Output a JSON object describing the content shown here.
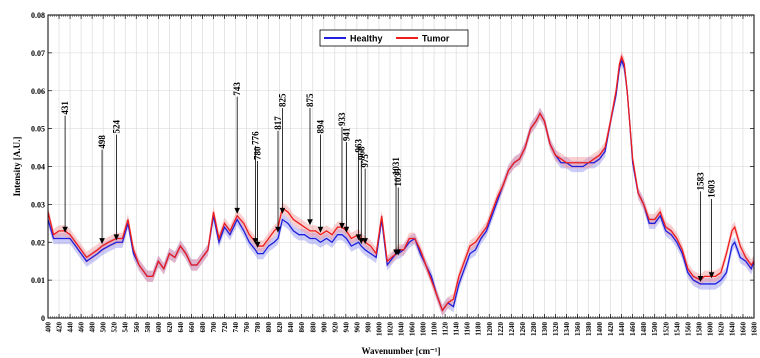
{
  "chart_data": {
    "type": "line",
    "title": "",
    "xlabel": "Wavenumber [cm⁻¹]",
    "ylabel": "Intensity [A.U.]",
    "xlim": [
      400,
      1680
    ],
    "ylim": [
      0,
      0.08
    ],
    "grid": true,
    "legend": "top-center",
    "y_ticks": [
      "0",
      "0.01",
      "0.02",
      "0.03",
      "0.04",
      "0.05",
      "0.06",
      "0.07",
      "0.08"
    ],
    "x_ticks": [
      400,
      420,
      440,
      460,
      480,
      500,
      520,
      540,
      560,
      580,
      600,
      620,
      640,
      660,
      680,
      700,
      720,
      740,
      760,
      780,
      800,
      820,
      840,
      860,
      880,
      900,
      920,
      940,
      960,
      980,
      1000,
      1020,
      1040,
      1060,
      1080,
      1100,
      1120,
      1140,
      1160,
      1180,
      1200,
      1220,
      1240,
      1260,
      1280,
      1300,
      1320,
      1340,
      1360,
      1380,
      1400,
      1420,
      1440,
      1460,
      1480,
      1500,
      1520,
      1540,
      1560,
      1580,
      1600,
      1620,
      1640,
      1660,
      1680
    ],
    "series": [
      {
        "name": "Healthy",
        "color": "#1f1fdd",
        "band_color": "#8f8ff0",
        "x": [
          400,
          410,
          420,
          431,
          440,
          450,
          460,
          470,
          480,
          490,
          498,
          510,
          524,
          535,
          545,
          555,
          565,
          580,
          590,
          600,
          610,
          620,
          630,
          640,
          650,
          660,
          670,
          680,
          690,
          700,
          710,
          720,
          730,
          743,
          755,
          765,
          776,
          780,
          790,
          800,
          810,
          817,
          825,
          835,
          845,
          855,
          865,
          875,
          885,
          894,
          905,
          915,
          925,
          933,
          941,
          950,
          963,
          968,
          975,
          985,
          995,
          1005,
          1015,
          1031,
          1035,
          1045,
          1055,
          1065,
          1075,
          1085,
          1095,
          1105,
          1115,
          1125,
          1135,
          1145,
          1155,
          1165,
          1175,
          1185,
          1195,
          1205,
          1215,
          1225,
          1235,
          1245,
          1255,
          1265,
          1275,
          1285,
          1292,
          1300,
          1310,
          1320,
          1330,
          1340,
          1350,
          1360,
          1370,
          1380,
          1390,
          1400,
          1410,
          1420,
          1430,
          1436,
          1440,
          1445,
          1450,
          1455,
          1460,
          1470,
          1480,
          1490,
          1500,
          1510,
          1520,
          1530,
          1540,
          1550,
          1560,
          1570,
          1583,
          1590,
          1603,
          1610,
          1620,
          1630,
          1640,
          1645,
          1655,
          1665,
          1675,
          1680
        ],
        "values": [
          0.026,
          0.021,
          0.021,
          0.021,
          0.021,
          0.019,
          0.017,
          0.015,
          0.016,
          0.017,
          0.018,
          0.019,
          0.02,
          0.02,
          0.025,
          0.017,
          0.014,
          0.011,
          0.011,
          0.015,
          0.013,
          0.017,
          0.016,
          0.019,
          0.017,
          0.014,
          0.014,
          0.016,
          0.018,
          0.027,
          0.02,
          0.024,
          0.022,
          0.026,
          0.023,
          0.02,
          0.018,
          0.017,
          0.017,
          0.019,
          0.02,
          0.021,
          0.026,
          0.025,
          0.023,
          0.022,
          0.022,
          0.021,
          0.021,
          0.02,
          0.021,
          0.02,
          0.022,
          0.022,
          0.021,
          0.019,
          0.02,
          0.019,
          0.018,
          0.017,
          0.016,
          0.026,
          0.014,
          0.017,
          0.017,
          0.018,
          0.02,
          0.021,
          0.017,
          0.014,
          0.011,
          0.006,
          0.002,
          0.004,
          0.003,
          0.009,
          0.013,
          0.017,
          0.018,
          0.021,
          0.023,
          0.027,
          0.031,
          0.035,
          0.039,
          0.041,
          0.042,
          0.045,
          0.05,
          0.052,
          0.054,
          0.052,
          0.046,
          0.043,
          0.041,
          0.041,
          0.04,
          0.04,
          0.04,
          0.041,
          0.041,
          0.042,
          0.044,
          0.052,
          0.059,
          0.066,
          0.068,
          0.066,
          0.06,
          0.051,
          0.041,
          0.033,
          0.03,
          0.025,
          0.025,
          0.027,
          0.023,
          0.022,
          0.02,
          0.017,
          0.012,
          0.01,
          0.009,
          0.009,
          0.009,
          0.009,
          0.01,
          0.012,
          0.019,
          0.02,
          0.016,
          0.015,
          0.013,
          0.015
        ]
      },
      {
        "name": "Tumor",
        "color": "#ee1c1c",
        "band_color": "#f59494",
        "x": [
          400,
          410,
          420,
          431,
          440,
          450,
          460,
          470,
          480,
          490,
          498,
          510,
          524,
          535,
          545,
          555,
          565,
          580,
          590,
          600,
          610,
          620,
          630,
          640,
          650,
          660,
          670,
          680,
          690,
          700,
          710,
          720,
          730,
          743,
          755,
          765,
          776,
          780,
          790,
          800,
          810,
          817,
          825,
          835,
          845,
          855,
          865,
          875,
          885,
          894,
          905,
          915,
          925,
          933,
          941,
          950,
          963,
          968,
          975,
          985,
          995,
          1005,
          1015,
          1031,
          1035,
          1045,
          1055,
          1065,
          1075,
          1085,
          1095,
          1105,
          1115,
          1125,
          1135,
          1145,
          1155,
          1165,
          1175,
          1185,
          1195,
          1205,
          1215,
          1225,
          1235,
          1245,
          1255,
          1265,
          1275,
          1285,
          1292,
          1300,
          1310,
          1320,
          1330,
          1340,
          1350,
          1360,
          1370,
          1380,
          1390,
          1400,
          1410,
          1420,
          1430,
          1436,
          1440,
          1445,
          1450,
          1455,
          1460,
          1470,
          1480,
          1490,
          1500,
          1510,
          1520,
          1530,
          1540,
          1550,
          1560,
          1570,
          1583,
          1590,
          1603,
          1610,
          1620,
          1630,
          1640,
          1645,
          1655,
          1665,
          1675,
          1680
        ],
        "values": [
          0.028,
          0.022,
          0.023,
          0.023,
          0.022,
          0.02,
          0.018,
          0.016,
          0.017,
          0.018,
          0.019,
          0.02,
          0.021,
          0.021,
          0.026,
          0.018,
          0.014,
          0.011,
          0.011,
          0.015,
          0.013,
          0.017,
          0.016,
          0.019,
          0.017,
          0.014,
          0.014,
          0.016,
          0.018,
          0.028,
          0.021,
          0.025,
          0.023,
          0.027,
          0.025,
          0.022,
          0.02,
          0.019,
          0.019,
          0.021,
          0.023,
          0.024,
          0.029,
          0.028,
          0.026,
          0.025,
          0.024,
          0.023,
          0.023,
          0.022,
          0.023,
          0.022,
          0.024,
          0.024,
          0.023,
          0.021,
          0.022,
          0.021,
          0.02,
          0.019,
          0.017,
          0.027,
          0.015,
          0.017,
          0.018,
          0.018,
          0.021,
          0.021,
          0.018,
          0.014,
          0.01,
          0.006,
          0.002,
          0.004,
          0.005,
          0.011,
          0.015,
          0.019,
          0.02,
          0.022,
          0.024,
          0.028,
          0.032,
          0.035,
          0.039,
          0.041,
          0.042,
          0.045,
          0.05,
          0.052,
          0.054,
          0.052,
          0.046,
          0.043,
          0.042,
          0.041,
          0.041,
          0.041,
          0.041,
          0.041,
          0.042,
          0.043,
          0.045,
          0.052,
          0.06,
          0.067,
          0.069,
          0.067,
          0.06,
          0.051,
          0.042,
          0.033,
          0.03,
          0.026,
          0.026,
          0.028,
          0.024,
          0.023,
          0.021,
          0.018,
          0.013,
          0.011,
          0.01,
          0.011,
          0.011,
          0.011,
          0.012,
          0.017,
          0.023,
          0.024,
          0.019,
          0.016,
          0.014,
          0.015
        ]
      }
    ],
    "annotations": [
      {
        "label": "431",
        "x": 431,
        "y_tip": 0.0225,
        "y_text": 0.0545
      },
      {
        "label": "498",
        "x": 498,
        "y_tip": 0.0195,
        "y_text": 0.0455
      },
      {
        "label": "524",
        "x": 524,
        "y_tip": 0.0205,
        "y_text": 0.0495
      },
      {
        "label": "743",
        "x": 743,
        "y_tip": 0.0275,
        "y_text": 0.0595
      },
      {
        "label": "776",
        "x": 776,
        "y_tip": 0.0195,
        "y_text": 0.0465
      },
      {
        "label": "780",
        "x": 780,
        "y_tip": 0.0185,
        "y_text": 0.0425
      },
      {
        "label": "817",
        "x": 817,
        "y_tip": 0.0225,
        "y_text": 0.0505
      },
      {
        "label": "825",
        "x": 825,
        "y_tip": 0.0275,
        "y_text": 0.0565
      },
      {
        "label": "875",
        "x": 875,
        "y_tip": 0.0245,
        "y_text": 0.0565
      },
      {
        "label": "894",
        "x": 894,
        "y_tip": 0.0225,
        "y_text": 0.0495
      },
      {
        "label": "933",
        "x": 933,
        "y_tip": 0.0235,
        "y_text": 0.0515
      },
      {
        "label": "941",
        "x": 941,
        "y_tip": 0.0225,
        "y_text": 0.0475
      },
      {
        "label": "963",
        "x": 963,
        "y_tip": 0.0205,
        "y_text": 0.0445
      },
      {
        "label": "968",
        "x": 968,
        "y_tip": 0.0195,
        "y_text": 0.0425
      },
      {
        "label": "975",
        "x": 975,
        "y_tip": 0.0195,
        "y_text": 0.0405
      },
      {
        "label": "1031",
        "x": 1031,
        "y_tip": 0.0165,
        "y_text": 0.0385
      },
      {
        "label": "1035",
        "x": 1035,
        "y_tip": 0.0165,
        "y_text": 0.0355
      },
      {
        "label": "1583",
        "x": 1583,
        "y_tip": 0.0095,
        "y_text": 0.0345
      },
      {
        "label": "1603",
        "x": 1603,
        "y_tip": 0.0105,
        "y_text": 0.0325
      }
    ]
  }
}
